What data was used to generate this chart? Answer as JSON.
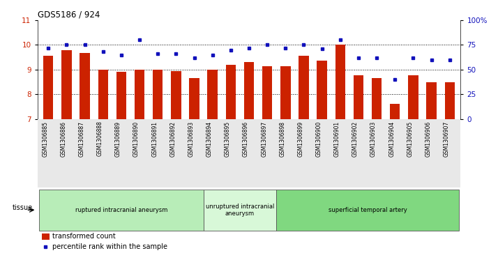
{
  "title": "GDS5186 / 924",
  "samples": [
    "GSM1306885",
    "GSM1306886",
    "GSM1306887",
    "GSM1306888",
    "GSM1306889",
    "GSM1306890",
    "GSM1306891",
    "GSM1306892",
    "GSM1306893",
    "GSM1306894",
    "GSM1306895",
    "GSM1306896",
    "GSM1306897",
    "GSM1306898",
    "GSM1306899",
    "GSM1306900",
    "GSM1306901",
    "GSM1306902",
    "GSM1306903",
    "GSM1306904",
    "GSM1306905",
    "GSM1306906",
    "GSM1306907"
  ],
  "bar_values": [
    9.55,
    9.78,
    9.68,
    9.0,
    8.9,
    9.0,
    9.0,
    8.93,
    8.65,
    9.0,
    9.2,
    9.3,
    9.15,
    9.13,
    9.57,
    9.35,
    10.02,
    8.78,
    8.65,
    7.6,
    8.78,
    8.48,
    8.5
  ],
  "dot_values_pct": [
    72,
    75,
    75,
    68,
    65,
    80,
    66,
    66,
    62,
    65,
    70,
    72,
    75,
    72,
    75,
    71,
    80,
    62,
    62,
    40,
    62,
    60,
    60
  ],
  "groups": [
    {
      "label": "ruptured intracranial aneurysm",
      "start": 0,
      "end": 9,
      "color": "#b8edb8"
    },
    {
      "label": "unruptured intracranial\naneurysm",
      "start": 9,
      "end": 13,
      "color": "#d8f8d8"
    },
    {
      "label": "superficial temporal artery",
      "start": 13,
      "end": 23,
      "color": "#80d880"
    }
  ],
  "ylim_left": [
    7,
    11
  ],
  "ylim_right": [
    0,
    100
  ],
  "yticks_left": [
    7,
    8,
    9,
    10,
    11
  ],
  "yticks_right": [
    0,
    25,
    50,
    75,
    100
  ],
  "ytick_labels_right": [
    "0",
    "25",
    "50",
    "75",
    "100%"
  ],
  "bar_color": "#cc2200",
  "dot_color": "#1111bb",
  "bar_width": 0.55,
  "tissue_label": "tissue",
  "legend_bar_label": "transformed count",
  "legend_dot_label": "percentile rank within the sample"
}
